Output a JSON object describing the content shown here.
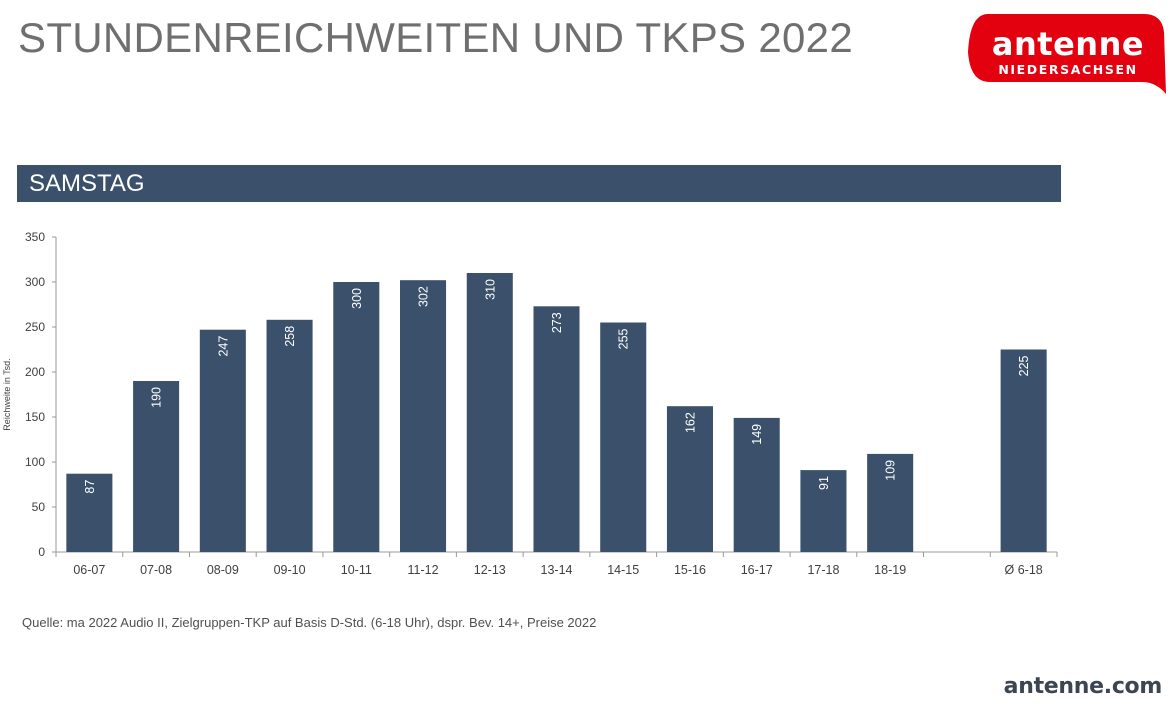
{
  "header": {
    "title": "STUNDENREICHWEITEN UND TKPS 2022"
  },
  "logo": {
    "word": "antenne",
    "subtitle": "NIEDERSACHSEN",
    "color": "#e3000f"
  },
  "section": {
    "label": "SAMSTAG",
    "color": "#3a506b"
  },
  "chart_data": {
    "type": "bar",
    "categories": [
      "06-07",
      "07-08",
      "08-09",
      "09-10",
      "10-11",
      "11-12",
      "12-13",
      "13-14",
      "14-15",
      "15-16",
      "16-17",
      "17-18",
      "18-19",
      "",
      "Ø 6-18"
    ],
    "values": [
      87,
      190,
      247,
      258,
      300,
      302,
      310,
      273,
      255,
      162,
      149,
      91,
      109,
      null,
      225
    ],
    "data_labels": [
      "87",
      "190",
      "247",
      "258",
      "300",
      "302",
      "310",
      "273",
      "255",
      "162",
      "149",
      "91",
      "109",
      "",
      "225"
    ],
    "ylabel": "Reichweite in Tsd.",
    "ylim": [
      0,
      350
    ],
    "yticks": [
      0,
      50,
      100,
      150,
      200,
      250,
      300,
      350
    ],
    "grid": false,
    "bar_color": "#3a506b"
  },
  "footer": {
    "source": "Quelle: ma 2022 Audio II, Zielgruppen-TKP auf Basis D-Std. (6-18 Uhr), dspr. Bev. 14+, Preise 2022",
    "website": "antenne.com"
  }
}
